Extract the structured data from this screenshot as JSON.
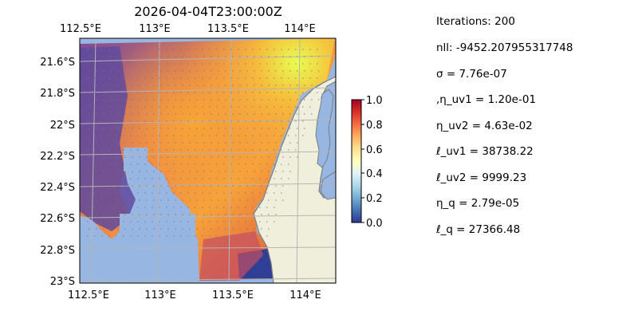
{
  "map": {
    "title": "2026-04-04T23:00:00Z",
    "lon_ticks": [
      "112.5°E",
      "113°E",
      "113.5°E",
      "114°E"
    ],
    "lat_ticks": [
      "21.6°S",
      "21.8°S",
      "22°S",
      "22.2°S",
      "22.4°S",
      "22.6°S",
      "22.8°S",
      "23°S"
    ],
    "extent": {
      "lon_min": 112.5,
      "lon_max": 114.2,
      "lat_min": -23.0,
      "lat_max": -21.5
    },
    "colors": {
      "ocean": "#97b6e1",
      "land": "#efefdb",
      "coast": "#7d7d7d",
      "grid": "#b5b5b5"
    },
    "colormap": "RdYlBu_r + plasma overlay"
  },
  "colorbar": {
    "ticks": [
      "0.0",
      "0.2",
      "0.4",
      "0.6",
      "0.8",
      "1.0"
    ],
    "range": [
      0.0,
      1.0
    ]
  },
  "stats": {
    "iterations": "Iterations: 200",
    "nll": "nll: -9452.207955317748",
    "sigma": "σ = 7.76e-07",
    "eta_uv1": ",η_uv1 = 1.20e-01",
    "eta_uv2": "η_uv2 = 4.63e-02",
    "ell_uv1": "ℓ_uv1 = 38738.22",
    "ell_uv2": "ℓ_uv2 = 9999.23",
    "eta_q": "η_q = 2.79e-05",
    "ell_q": "ℓ_q = 27366.48"
  }
}
